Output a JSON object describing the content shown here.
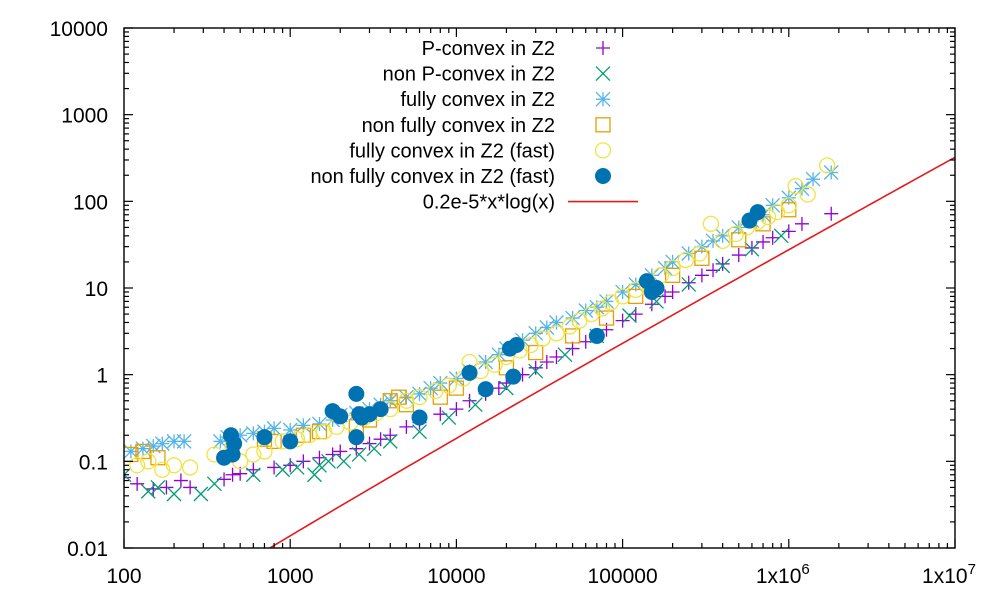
{
  "chart_data": {
    "type": "scatter",
    "title": "",
    "xlabel": "",
    "ylabel": "",
    "x_scale": "log",
    "y_scale": "log",
    "xlim": [
      100,
      10000000
    ],
    "ylim": [
      0.01,
      10000
    ],
    "grid": false,
    "legend_position": "top-center",
    "x_ticks": [
      {
        "value": 100,
        "label": "100"
      },
      {
        "value": 1000,
        "label": "1000"
      },
      {
        "value": 10000,
        "label": "10000"
      },
      {
        "value": 100000,
        "label": "100000"
      },
      {
        "value": 1000000,
        "label": "1x10",
        "sup": "6"
      },
      {
        "value": 10000000,
        "label": "1x10",
        "sup": "7"
      }
    ],
    "y_ticks": [
      {
        "value": 0.01,
        "label": "0.01"
      },
      {
        "value": 0.1,
        "label": "0.1"
      },
      {
        "value": 1,
        "label": "1"
      },
      {
        "value": 10,
        "label": "10"
      },
      {
        "value": 100,
        "label": "100"
      },
      {
        "value": 1000,
        "label": "1000"
      },
      {
        "value": 10000,
        "label": "10000"
      }
    ],
    "series": [
      {
        "name": "P-convex in Z2",
        "marker": "plus",
        "color": "#9400d3",
        "points": [
          [
            100,
            0.065
          ],
          [
            120,
            0.055
          ],
          [
            150,
            0.048
          ],
          [
            180,
            0.05
          ],
          [
            220,
            0.06
          ],
          [
            250,
            0.05
          ],
          [
            400,
            0.062
          ],
          [
            450,
            0.07
          ],
          [
            500,
            0.072
          ],
          [
            600,
            0.08
          ],
          [
            800,
            0.085
          ],
          [
            1000,
            0.09
          ],
          [
            1200,
            0.1
          ],
          [
            1500,
            0.11
          ],
          [
            1800,
            0.12
          ],
          [
            2000,
            0.13
          ],
          [
            2500,
            0.14
          ],
          [
            3000,
            0.16
          ],
          [
            3500,
            0.18
          ],
          [
            4000,
            0.2
          ],
          [
            5000,
            0.25
          ],
          [
            6000,
            0.28
          ],
          [
            8000,
            0.35
          ],
          [
            10000,
            0.4
          ],
          [
            12000,
            0.5
          ],
          [
            15000,
            0.6
          ],
          [
            18000,
            0.7
          ],
          [
            20000,
            0.8
          ],
          [
            25000,
            1.0
          ],
          [
            30000,
            1.2
          ],
          [
            35000,
            1.4
          ],
          [
            40000,
            1.6
          ],
          [
            50000,
            2.0
          ],
          [
            60000,
            2.4
          ],
          [
            70000,
            2.8
          ],
          [
            80000,
            3.3
          ],
          [
            100000,
            4.2
          ],
          [
            120000,
            5.0
          ],
          [
            150000,
            6.5
          ],
          [
            180000,
            8.0
          ],
          [
            200000,
            9.0
          ],
          [
            250000,
            11.5
          ],
          [
            300000,
            14.0
          ],
          [
            350000,
            16.0
          ],
          [
            400000,
            19.0
          ],
          [
            500000,
            24.0
          ],
          [
            600000,
            29.0
          ],
          [
            700000,
            34.0
          ],
          [
            800000,
            38.0
          ],
          [
            1000000,
            45.0
          ],
          [
            1200000,
            55.0
          ],
          [
            1800000,
            72.0
          ]
        ]
      },
      {
        "name": "non P-convex in Z2",
        "marker": "cross",
        "color": "#009e73",
        "points": [
          [
            100,
            0.07
          ],
          [
            140,
            0.045
          ],
          [
            160,
            0.05
          ],
          [
            200,
            0.042
          ],
          [
            290,
            0.042
          ],
          [
            350,
            0.055
          ],
          [
            600,
            0.07
          ],
          [
            900,
            0.08
          ],
          [
            1100,
            0.085
          ],
          [
            1400,
            0.07
          ],
          [
            1500,
            0.09
          ],
          [
            1700,
            0.1
          ],
          [
            2100,
            0.1
          ],
          [
            2600,
            0.12
          ],
          [
            3200,
            0.14
          ],
          [
            4000,
            0.17
          ],
          [
            6000,
            0.22
          ],
          [
            9000,
            0.32
          ],
          [
            13000,
            0.45
          ],
          [
            20000,
            0.7
          ],
          [
            30000,
            1.1
          ],
          [
            45000,
            1.7
          ],
          [
            70000,
            2.8
          ],
          [
            110000,
            4.8
          ],
          [
            160000,
            7.0
          ],
          [
            250000,
            11.0
          ],
          [
            400000,
            18.0
          ],
          [
            600000,
            28.0
          ],
          [
            900000,
            40.0
          ]
        ]
      },
      {
        "name": "fully convex in Z2",
        "marker": "star",
        "color": "#56b4e9",
        "points": [
          [
            110,
            0.13
          ],
          [
            130,
            0.14
          ],
          [
            150,
            0.15
          ],
          [
            170,
            0.16
          ],
          [
            200,
            0.17
          ],
          [
            230,
            0.17
          ],
          [
            380,
            0.17
          ],
          [
            420,
            0.19
          ],
          [
            500,
            0.2
          ],
          [
            600,
            0.21
          ],
          [
            700,
            0.22
          ],
          [
            800,
            0.24
          ],
          [
            1000,
            0.23
          ],
          [
            1200,
            0.26
          ],
          [
            1500,
            0.27
          ],
          [
            1800,
            0.3
          ],
          [
            2000,
            0.34
          ],
          [
            2500,
            0.36
          ],
          [
            3000,
            0.4
          ],
          [
            3500,
            0.45
          ],
          [
            4000,
            0.5
          ],
          [
            5000,
            0.55
          ],
          [
            6000,
            0.6
          ],
          [
            7000,
            0.7
          ],
          [
            8000,
            0.8
          ],
          [
            10000,
            0.9
          ],
          [
            12000,
            1.1
          ],
          [
            15000,
            1.4
          ],
          [
            18000,
            1.7
          ],
          [
            20000,
            2.0
          ],
          [
            25000,
            2.5
          ],
          [
            30000,
            3.0
          ],
          [
            35000,
            3.5
          ],
          [
            40000,
            4.0
          ],
          [
            50000,
            4.5
          ],
          [
            60000,
            5.5
          ],
          [
            70000,
            6.0
          ],
          [
            80000,
            7.0
          ],
          [
            100000,
            9.0
          ],
          [
            120000,
            11.0
          ],
          [
            150000,
            14.0
          ],
          [
            180000,
            17.0
          ],
          [
            200000,
            20.0
          ],
          [
            250000,
            25.0
          ],
          [
            300000,
            30.0
          ],
          [
            350000,
            35.0
          ],
          [
            400000,
            40.0
          ],
          [
            500000,
            50.0
          ],
          [
            600000,
            60.0
          ],
          [
            700000,
            70.0
          ],
          [
            800000,
            90.0
          ],
          [
            1000000,
            110.0
          ],
          [
            1200000,
            140.0
          ],
          [
            1400000,
            180.0
          ],
          [
            1800000,
            215.0
          ]
        ]
      },
      {
        "name": "non fully convex in Z2",
        "marker": "square",
        "color": "#e69f00",
        "points": [
          [
            110,
            0.12
          ],
          [
            130,
            0.13
          ],
          [
            160,
            0.11
          ],
          [
            700,
            0.18
          ],
          [
            800,
            0.17
          ],
          [
            1200,
            0.2
          ],
          [
            1500,
            0.22
          ],
          [
            2500,
            0.25
          ],
          [
            3000,
            0.3
          ],
          [
            4000,
            0.5
          ],
          [
            4500,
            0.55
          ],
          [
            5000,
            0.45
          ],
          [
            8000,
            0.55
          ],
          [
            10000,
            0.7
          ],
          [
            20000,
            1.2
          ],
          [
            30000,
            1.8
          ],
          [
            50000,
            2.8
          ],
          [
            80000,
            4.5
          ],
          [
            120000,
            8.0
          ],
          [
            200000,
            14.0
          ],
          [
            300000,
            22.0
          ],
          [
            500000,
            36.0
          ],
          [
            700000,
            55.0
          ],
          [
            1000000,
            80.0
          ]
        ]
      },
      {
        "name": "fully convex in Z2 (fast)",
        "marker": "circle-open",
        "color": "#f0e442",
        "points": [
          [
            120,
            0.09
          ],
          [
            140,
            0.1
          ],
          [
            170,
            0.08
          ],
          [
            200,
            0.09
          ],
          [
            250,
            0.085
          ],
          [
            350,
            0.12
          ],
          [
            450,
            0.15
          ],
          [
            500,
            0.1
          ],
          [
            600,
            0.12
          ],
          [
            700,
            0.13
          ],
          [
            900,
            0.17
          ],
          [
            1100,
            0.18
          ],
          [
            1300,
            0.2
          ],
          [
            1600,
            0.22
          ],
          [
            1900,
            0.25
          ],
          [
            2300,
            0.28
          ],
          [
            2800,
            0.32
          ],
          [
            3300,
            0.36
          ],
          [
            4000,
            0.4
          ],
          [
            5000,
            0.5
          ],
          [
            6000,
            0.55
          ],
          [
            7500,
            0.65
          ],
          [
            9000,
            0.75
          ],
          [
            11000,
            0.9
          ],
          [
            12000,
            1.4
          ],
          [
            14000,
            1.1
          ],
          [
            17000,
            1.3
          ],
          [
            20000,
            1.6
          ],
          [
            24000,
            1.9
          ],
          [
            28000,
            2.2
          ],
          [
            33000,
            2.6
          ],
          [
            40000,
            3.0
          ],
          [
            48000,
            3.6
          ],
          [
            55000,
            4.2
          ],
          [
            65000,
            5.0
          ],
          [
            75000,
            5.8
          ],
          [
            85000,
            6.8
          ],
          [
            100000,
            8.0
          ],
          [
            120000,
            9.5
          ],
          [
            140000,
            11.0
          ],
          [
            170000,
            14.0
          ],
          [
            200000,
            17.0
          ],
          [
            240000,
            21.0
          ],
          [
            290000,
            25.0
          ],
          [
            340000,
            55.0
          ],
          [
            400000,
            35.0
          ],
          [
            480000,
            42.0
          ],
          [
            560000,
            50.0
          ],
          [
            650000,
            58.0
          ],
          [
            750000,
            66.0
          ],
          [
            850000,
            75.0
          ],
          [
            1000000,
            90.0
          ],
          [
            1100000,
            150.0
          ],
          [
            1300000,
            120.0
          ],
          [
            1700000,
            260.0
          ]
        ]
      },
      {
        "name": "non fully convex in Z2 (fast)",
        "marker": "circle-filled",
        "color": "#0072b2",
        "points": [
          [
            400,
            0.11
          ],
          [
            440,
            0.2
          ],
          [
            460,
            0.16
          ],
          [
            450,
            0.12
          ],
          [
            700,
            0.19
          ],
          [
            1000,
            0.17
          ],
          [
            1800,
            0.38
          ],
          [
            2000,
            0.33
          ],
          [
            2500,
            0.6
          ],
          [
            2600,
            0.35
          ],
          [
            2700,
            0.32
          ],
          [
            2500,
            0.19
          ],
          [
            3000,
            0.35
          ],
          [
            3500,
            0.4
          ],
          [
            6000,
            0.32
          ],
          [
            12000,
            1.05
          ],
          [
            15000,
            0.68
          ],
          [
            21000,
            2.0
          ],
          [
            23000,
            2.2
          ],
          [
            22000,
            0.95
          ],
          [
            70000,
            2.8
          ],
          [
            140000,
            12.0
          ],
          [
            150000,
            9.0
          ],
          [
            160000,
            10.0
          ],
          [
            580000,
            60.0
          ],
          [
            650000,
            75.0
          ]
        ]
      },
      {
        "name": "0.2e-5*x*log(x)",
        "marker": "line",
        "color": "#e41a1c",
        "function": "0.2e-5*x*log(x)",
        "x_range": [
          700,
          10000000
        ]
      }
    ]
  }
}
